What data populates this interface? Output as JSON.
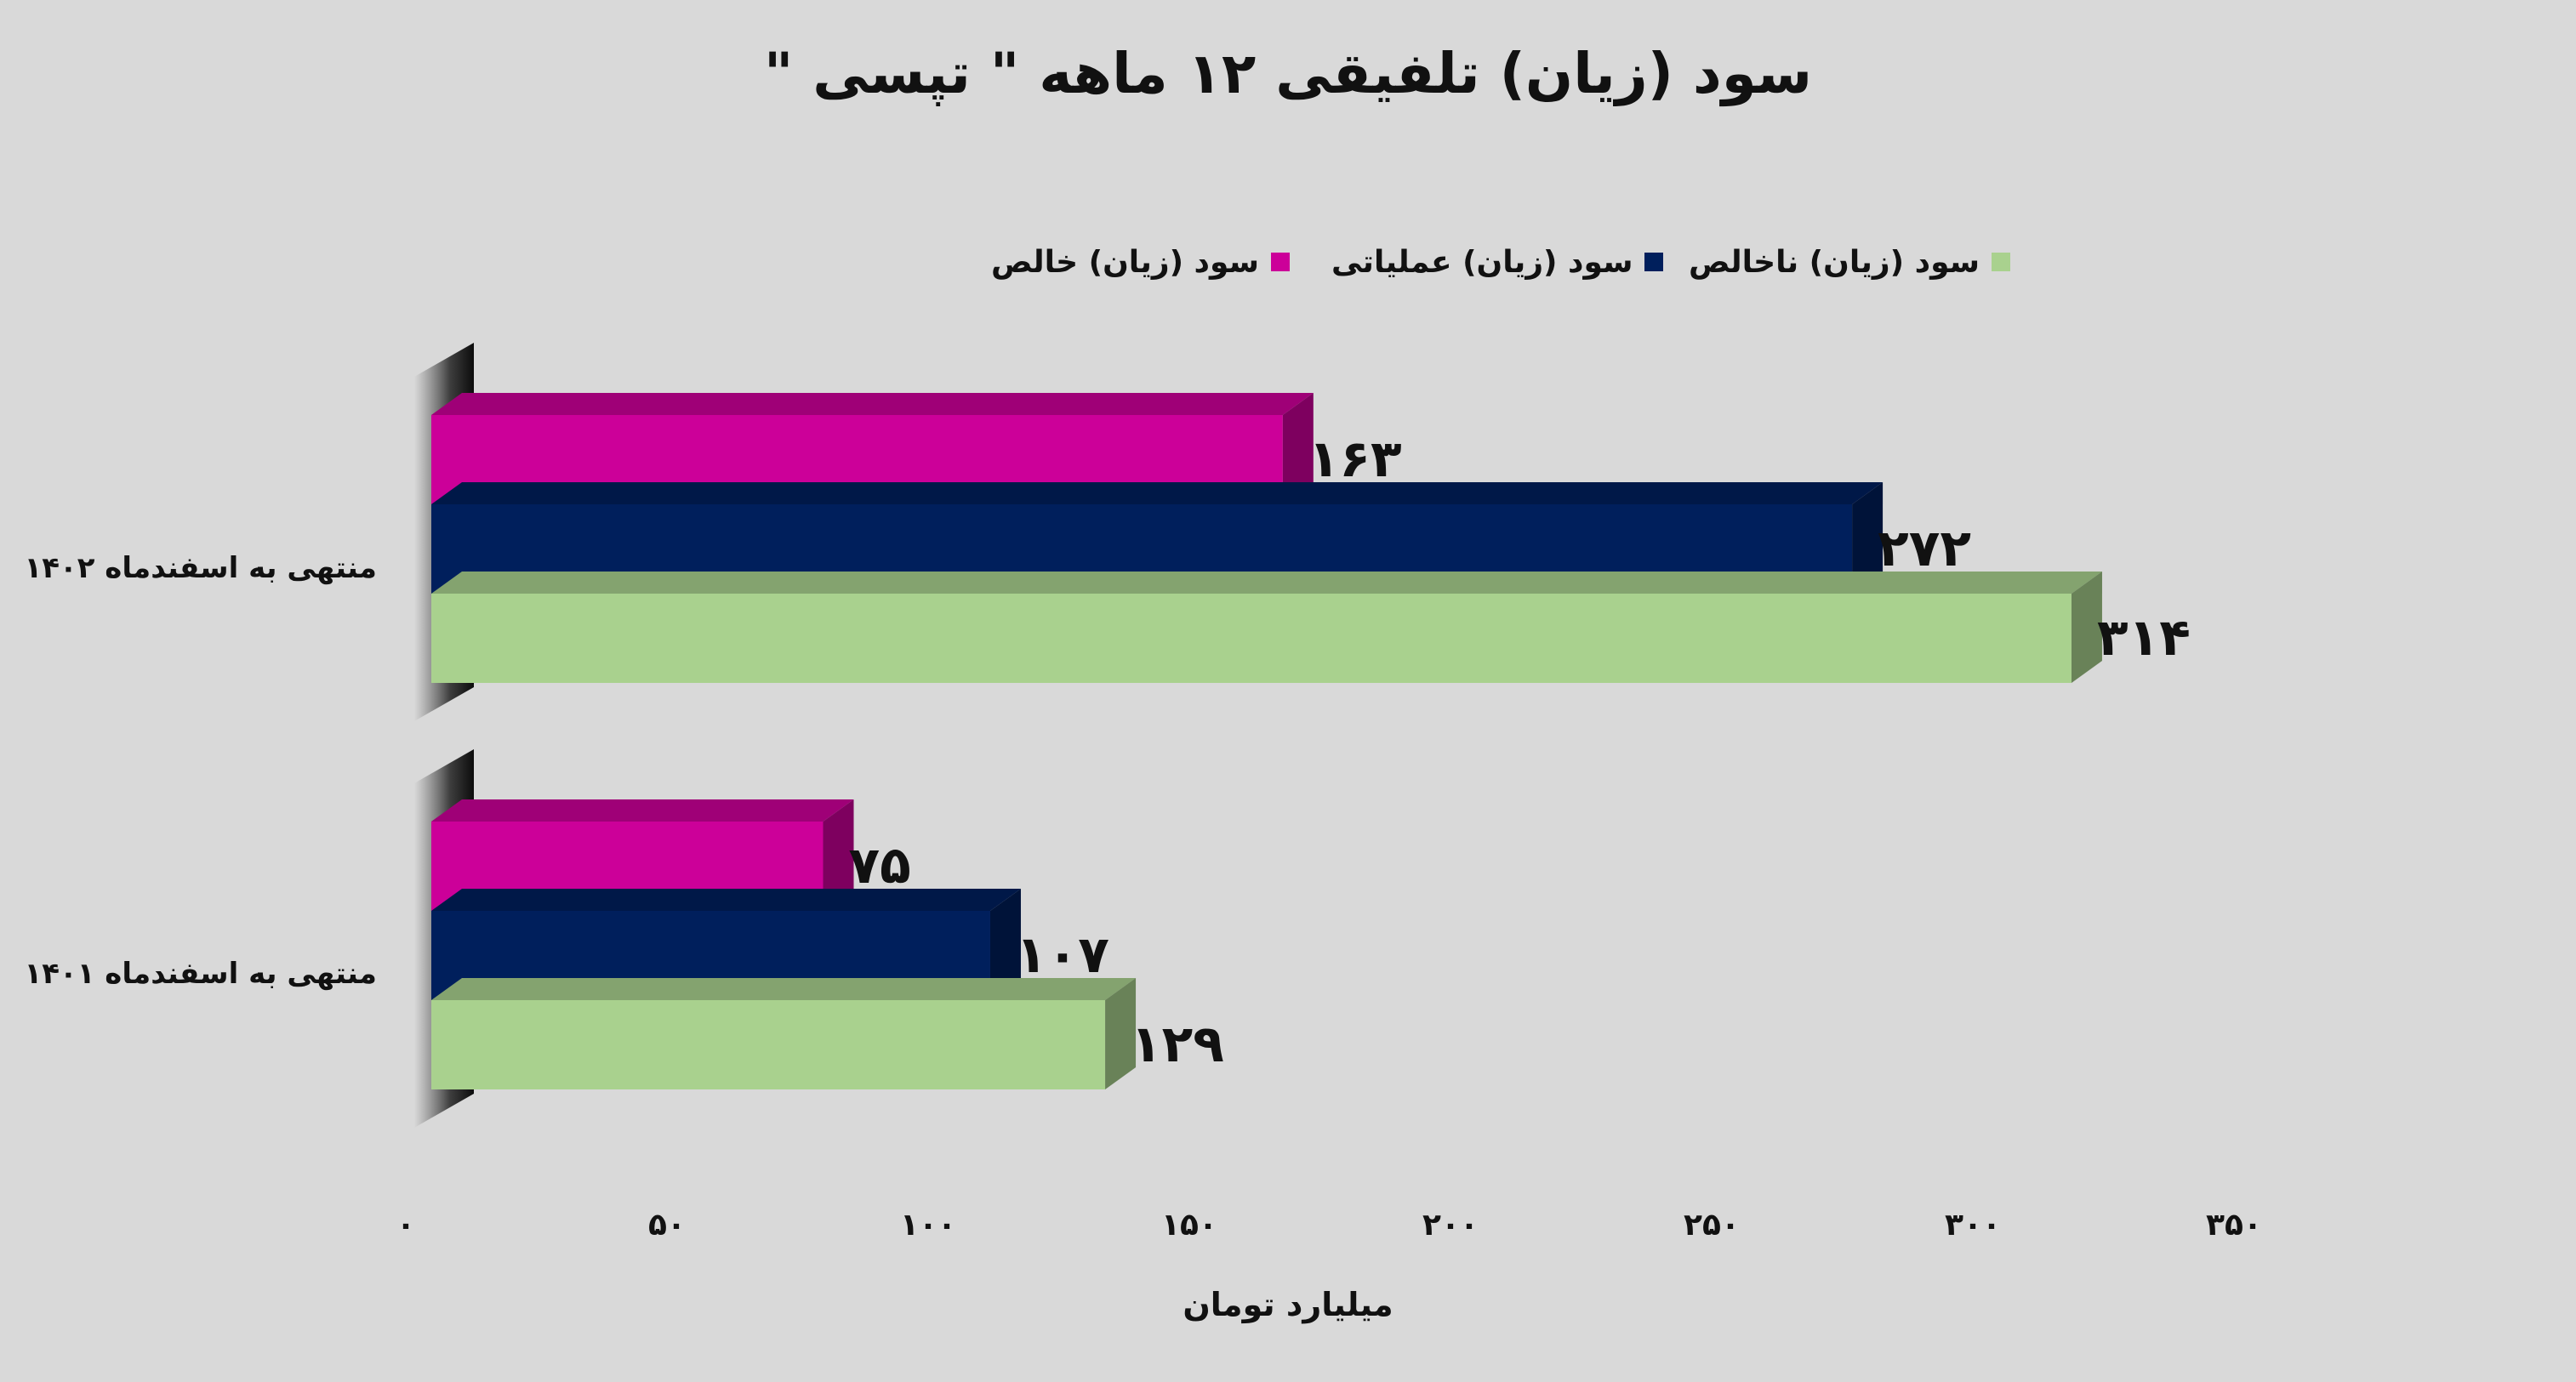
{
  "chart_data": {
    "type": "bar",
    "orientation": "horizontal",
    "title": "سود (زیان) تلفیقی ۱۲ ماهه \" تپسی \"",
    "xlabel": "میلیارد تومان",
    "xlim": [
      0,
      350
    ],
    "x_ticks": [
      "۰",
      "۵۰",
      "۱۰۰",
      "۱۵۰",
      "۲۰۰",
      "۲۵۰",
      "۳۰۰",
      "۳۵۰"
    ],
    "categories": [
      "منتهی به اسفندماه ۱۴۰۲",
      "منتهی به اسفندماه ۱۴۰۱"
    ],
    "series": [
      {
        "name": "سود (زیان) خالص",
        "color": "#cc0099",
        "values": [
          163,
          75
        ],
        "labels": [
          "۱۶۳",
          "۷۵"
        ]
      },
      {
        "name": "سود (زیان) عملیاتی",
        "color": "#001f5c",
        "values": [
          272,
          107
        ],
        "labels": [
          "۲۷۲",
          "۱۰۷"
        ]
      },
      {
        "name": "سود (زیان) ناخالص",
        "color": "#a9d18e",
        "values": [
          314,
          129
        ],
        "labels": [
          "۳۱۴",
          "۱۲۹"
        ]
      }
    ],
    "legend_position": "top",
    "grid": false
  }
}
